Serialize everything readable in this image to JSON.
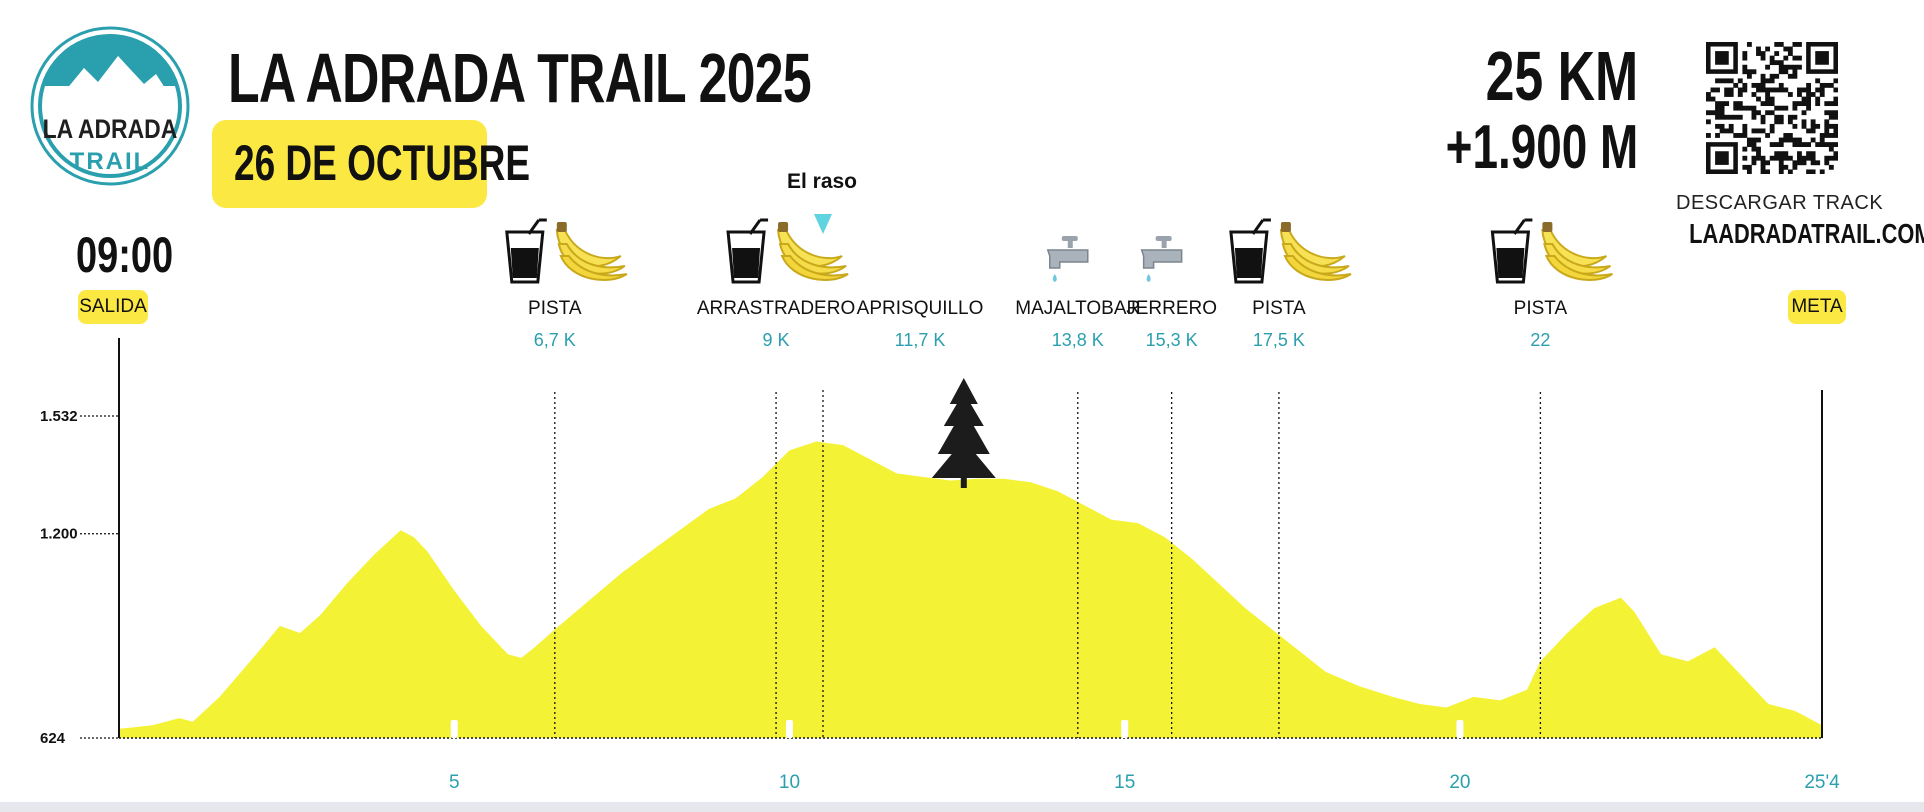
{
  "header": {
    "title": "LA ADRADA TRAIL 2025",
    "date": "26 DE OCTUBRE",
    "distance": "25 KM",
    "elevation_gain": "+1.900 M",
    "download_label": "DESCARGAR TRACK",
    "website": "LAADRADATRAIL.COM"
  },
  "logo": {
    "line1": "LA ADRADA",
    "line2": "TRAIL"
  },
  "start": {
    "time": "09:00",
    "label": "SALIDA"
  },
  "finish": {
    "label": "META"
  },
  "colors": {
    "profile_fill": "#f4f235",
    "accent_teal": "#2a9fae",
    "badge_yellow": "#fbe843",
    "text_dark": "#111111"
  },
  "chart_data": {
    "type": "area",
    "xlabel": "",
    "ylabel": "",
    "xlim": [
      0,
      25.4
    ],
    "ylim": [
      624,
      1532
    ],
    "yticks": [
      {
        "value": 624,
        "label": "624"
      },
      {
        "value": 1200,
        "label": "1.200"
      },
      {
        "value": 1532,
        "label": "1.532"
      }
    ],
    "xticks": [
      {
        "value": 5,
        "label": "5"
      },
      {
        "value": 10,
        "label": "10"
      },
      {
        "value": 15,
        "label": "15"
      },
      {
        "value": 20,
        "label": "20"
      },
      {
        "value": 25.4,
        "label": "25'4"
      }
    ],
    "grid": false,
    "series": [
      {
        "x": [
          0,
          0.5,
          0.9,
          1.1,
          1.5,
          2.0,
          2.4,
          2.7,
          3.0,
          3.4,
          3.8,
          4.2,
          4.4,
          4.6,
          5.0,
          5.4,
          5.8,
          6.0,
          6.2,
          6.5,
          7.0,
          7.5,
          8.0,
          8.4,
          8.8,
          9.2,
          9.6,
          10.0,
          10.4,
          10.8,
          11.2,
          11.6,
          12.0,
          12.4,
          12.8,
          13.2,
          13.6,
          14.0,
          14.4,
          14.8,
          15.2,
          15.6,
          16.0,
          16.4,
          16.8,
          17.2,
          17.6,
          18.0,
          18.5,
          19.0,
          19.4,
          19.8,
          20.2,
          20.6,
          21.0,
          21.2,
          21.6,
          22.0,
          22.4,
          22.6,
          22.8,
          23.0,
          23.4,
          23.8,
          24.2,
          24.6,
          25.0,
          25.2,
          25.4
        ],
        "y": [
          650,
          660,
          680,
          670,
          740,
          850,
          940,
          920,
          970,
          1060,
          1140,
          1210,
          1190,
          1150,
          1040,
          940,
          860,
          850,
          880,
          930,
          1010,
          1090,
          1160,
          1215,
          1270,
          1300,
          1360,
          1435,
          1460,
          1450,
          1410,
          1370,
          1360,
          1350,
          1355,
          1355,
          1345,
          1320,
          1280,
          1240,
          1230,
          1190,
          1130,
          1060,
          990,
          930,
          870,
          810,
          770,
          740,
          720,
          710,
          740,
          730,
          760,
          840,
          920,
          990,
          1020,
          980,
          920,
          860,
          840,
          880,
          800,
          720,
          700,
          680,
          660
        ]
      }
    ],
    "stations": [
      {
        "name": "PISTA",
        "km_label": "6,7 K",
        "km": 6.5,
        "services": [
          "drink",
          "bananas"
        ]
      },
      {
        "name": "ARRASTRADERO",
        "km_label": "9 K",
        "km": 9.8,
        "services": [
          "drink",
          "bananas"
        ]
      },
      {
        "name": "APRISQUILLO",
        "km_label": "11,7 K",
        "km": 11.5,
        "services": []
      },
      {
        "name": "MAJALTOBAR",
        "km_label": "13,8 K",
        "km": 14.3,
        "services": [
          "water-tap"
        ]
      },
      {
        "name": "JERRERO",
        "km_label": "15,3 K",
        "km": 15.7,
        "services": [
          "water-tap"
        ]
      },
      {
        "name": "PISTA",
        "km_label": "17,5 K",
        "km": 17.3,
        "services": [
          "drink",
          "bananas"
        ]
      },
      {
        "name": "PISTA",
        "km_label": "22",
        "km": 21.2,
        "services": [
          "drink",
          "bananas"
        ]
      }
    ],
    "points_of_interest": [
      {
        "label": "El raso",
        "km": 10.5,
        "marker": "teal-triangle"
      }
    ],
    "markers": [
      {
        "icon": "pine-tree-icon",
        "km": 12.6
      }
    ]
  }
}
